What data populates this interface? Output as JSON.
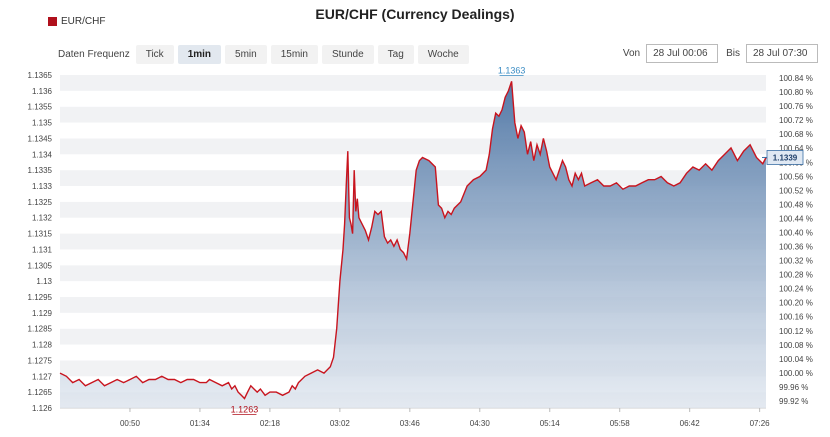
{
  "title": "EUR/CHF (Currency Dealings)",
  "legend": {
    "label": "EUR/CHF",
    "color": "#b0101c"
  },
  "controls": {
    "label": "Daten Frequenz",
    "options": [
      "Tick",
      "1min",
      "5min",
      "15min",
      "Stunde",
      "Tag",
      "Woche"
    ],
    "active": "1min"
  },
  "range": {
    "from_label": "Von",
    "from": "28 Jul 00:06",
    "to_label": "Bis",
    "to": "28 Jul 07:30"
  },
  "chart_data": {
    "type": "area",
    "x_ticks": [
      "00:50",
      "01:34",
      "02:18",
      "03:02",
      "03:46",
      "04:30",
      "05:14",
      "05:58",
      "06:42",
      "07:26"
    ],
    "y_left_ticks": [
      "1.126",
      "1.1265",
      "1.127",
      "1.1275",
      "1.128",
      "1.1285",
      "1.129",
      "1.1295",
      "1.13",
      "1.1305",
      "1.131",
      "1.1315",
      "1.132",
      "1.1325",
      "1.133",
      "1.1335",
      "1.134",
      "1.1345",
      "1.135",
      "1.1355",
      "1.136",
      "1.1365"
    ],
    "y_right_ticks": [
      "99.92 %",
      "99.96 %",
      "100.00 %",
      "100.04 %",
      "100.08 %",
      "100.12 %",
      "100.16 %",
      "100.20 %",
      "100.24 %",
      "100.28 %",
      "100.32 %",
      "100.36 %",
      "100.40 %",
      "100.44 %",
      "100.48 %",
      "100.52 %",
      "100.56 %",
      "100.60 %",
      "100.64 %",
      "100.68 %",
      "100.72 %",
      "100.76 %",
      "100.80 %",
      "100.84 %"
    ],
    "ylim": [
      1.126,
      1.1365
    ],
    "xlim_minutes": [
      6,
      450
    ],
    "series": [
      {
        "name": "EUR/CHF",
        "points": [
          [
            6,
            1.1271
          ],
          [
            10,
            1.127
          ],
          [
            14,
            1.1268
          ],
          [
            18,
            1.1269
          ],
          [
            22,
            1.1267
          ],
          [
            26,
            1.1268
          ],
          [
            30,
            1.1269
          ],
          [
            34,
            1.1267
          ],
          [
            38,
            1.1268
          ],
          [
            42,
            1.1269
          ],
          [
            46,
            1.1268
          ],
          [
            50,
            1.1269
          ],
          [
            54,
            1.127
          ],
          [
            58,
            1.1268
          ],
          [
            62,
            1.1269
          ],
          [
            66,
            1.1269
          ],
          [
            70,
            1.127
          ],
          [
            74,
            1.1269
          ],
          [
            78,
            1.1269
          ],
          [
            82,
            1.1268
          ],
          [
            86,
            1.1269
          ],
          [
            90,
            1.1269
          ],
          [
            94,
            1.1268
          ],
          [
            98,
            1.1268
          ],
          [
            100,
            1.1269
          ],
          [
            104,
            1.1268
          ],
          [
            108,
            1.1267
          ],
          [
            112,
            1.1268
          ],
          [
            114,
            1.1266
          ],
          [
            116,
            1.1267
          ],
          [
            118,
            1.1265
          ],
          [
            120,
            1.1264
          ],
          [
            122,
            1.1263
          ],
          [
            124,
            1.1265
          ],
          [
            126,
            1.1267
          ],
          [
            128,
            1.1266
          ],
          [
            130,
            1.1265
          ],
          [
            132,
            1.1266
          ],
          [
            135,
            1.1264
          ],
          [
            138,
            1.1265
          ],
          [
            142,
            1.1265
          ],
          [
            146,
            1.1264
          ],
          [
            150,
            1.1265
          ],
          [
            152,
            1.1267
          ],
          [
            154,
            1.1266
          ],
          [
            156,
            1.1268
          ],
          [
            160,
            1.127
          ],
          [
            164,
            1.1271
          ],
          [
            168,
            1.1272
          ],
          [
            172,
            1.1271
          ],
          [
            176,
            1.1273
          ],
          [
            178,
            1.1276
          ],
          [
            180,
            1.1285
          ],
          [
            182,
            1.13
          ],
          [
            184,
            1.131
          ],
          [
            185,
            1.1318
          ],
          [
            186,
            1.133
          ],
          [
            187,
            1.1341
          ],
          [
            188,
            1.132
          ],
          [
            189,
            1.1318
          ],
          [
            190,
            1.1315
          ],
          [
            191,
            1.1335
          ],
          [
            192,
            1.1322
          ],
          [
            193,
            1.1326
          ],
          [
            194,
            1.132
          ],
          [
            196,
            1.1318
          ],
          [
            198,
            1.1316
          ],
          [
            200,
            1.1313
          ],
          [
            202,
            1.1317
          ],
          [
            204,
            1.1322
          ],
          [
            206,
            1.1321
          ],
          [
            208,
            1.1322
          ],
          [
            210,
            1.1314
          ],
          [
            212,
            1.1312
          ],
          [
            214,
            1.1313
          ],
          [
            216,
            1.1311
          ],
          [
            218,
            1.1313
          ],
          [
            220,
            1.131
          ],
          [
            222,
            1.1309
          ],
          [
            224,
            1.1307
          ],
          [
            226,
            1.1315
          ],
          [
            228,
            1.1325
          ],
          [
            230,
            1.1335
          ],
          [
            232,
            1.1338
          ],
          [
            234,
            1.1339
          ],
          [
            238,
            1.1338
          ],
          [
            242,
            1.1336
          ],
          [
            244,
            1.1324
          ],
          [
            246,
            1.1323
          ],
          [
            248,
            1.132
          ],
          [
            250,
            1.1322
          ],
          [
            252,
            1.1321
          ],
          [
            254,
            1.1323
          ],
          [
            258,
            1.1325
          ],
          [
            262,
            1.133
          ],
          [
            266,
            1.1332
          ],
          [
            270,
            1.1333
          ],
          [
            274,
            1.1335
          ],
          [
            276,
            1.134
          ],
          [
            278,
            1.1348
          ],
          [
            280,
            1.1353
          ],
          [
            282,
            1.1352
          ],
          [
            284,
            1.1354
          ],
          [
            286,
            1.1358
          ],
          [
            288,
            1.136
          ],
          [
            290,
            1.1363
          ],
          [
            292,
            1.135
          ],
          [
            294,
            1.1345
          ],
          [
            296,
            1.1349
          ],
          [
            298,
            1.1347
          ],
          [
            300,
            1.134
          ],
          [
            302,
            1.1344
          ],
          [
            304,
            1.1338
          ],
          [
            306,
            1.1343
          ],
          [
            308,
            1.134
          ],
          [
            310,
            1.1345
          ],
          [
            312,
            1.1341
          ],
          [
            314,
            1.1336
          ],
          [
            316,
            1.1334
          ],
          [
            318,
            1.1332
          ],
          [
            320,
            1.1335
          ],
          [
            322,
            1.1338
          ],
          [
            324,
            1.1336
          ],
          [
            326,
            1.1332
          ],
          [
            328,
            1.133
          ],
          [
            330,
            1.1334
          ],
          [
            332,
            1.1332
          ],
          [
            334,
            1.1334
          ],
          [
            336,
            1.133
          ],
          [
            340,
            1.1331
          ],
          [
            344,
            1.1332
          ],
          [
            348,
            1.133
          ],
          [
            352,
            1.133
          ],
          [
            356,
            1.1331
          ],
          [
            360,
            1.1329
          ],
          [
            364,
            1.133
          ],
          [
            368,
            1.133
          ],
          [
            372,
            1.1331
          ],
          [
            376,
            1.1332
          ],
          [
            380,
            1.1332
          ],
          [
            384,
            1.1333
          ],
          [
            388,
            1.1331
          ],
          [
            392,
            1.133
          ],
          [
            396,
            1.1331
          ],
          [
            400,
            1.1334
          ],
          [
            404,
            1.1336
          ],
          [
            408,
            1.1335
          ],
          [
            412,
            1.1337
          ],
          [
            416,
            1.1335
          ],
          [
            420,
            1.1338
          ],
          [
            424,
            1.134
          ],
          [
            428,
            1.1342
          ],
          [
            432,
            1.1338
          ],
          [
            436,
            1.1341
          ],
          [
            440,
            1.1343
          ],
          [
            444,
            1.1339
          ],
          [
            448,
            1.1337
          ],
          [
            450,
            1.1339
          ]
        ]
      }
    ],
    "annotations": [
      {
        "label": "1.1363",
        "x": 290,
        "y": 1.1363,
        "position": "above",
        "color": "#3a8cc4"
      },
      {
        "label": "1.1263",
        "x": 122,
        "y": 1.1263,
        "position": "below",
        "color": "#b0101c"
      }
    ],
    "current_value": {
      "label": "1.1339",
      "y": 1.1339
    },
    "grid": true,
    "line_color": "#c8141e",
    "fill_top": "#4b73a3",
    "fill_bottom": "#dfe6ef"
  }
}
